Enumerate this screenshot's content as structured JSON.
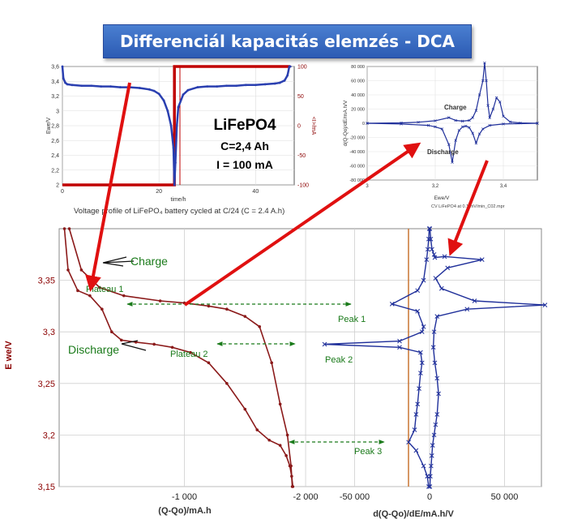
{
  "title": "Differenciál kapacitás elemzés - DCA",
  "info": {
    "material": "LiFePO4",
    "capacity": "C=2,4 Ah",
    "current": "I = 100 mA"
  },
  "colors": {
    "banner": "#2f5fb8",
    "voltage_curve": "#2a3fb0",
    "current_line": "#c00000",
    "main_curve": "#8b1a1a",
    "dqdv_curve": "#1f2f9a",
    "arrow": "#e01010",
    "annotation": "#1a7a1a"
  },
  "chart_data": [
    {
      "id": "voltage-profile",
      "type": "line",
      "caption": "Voltage profile of LiFePO₄ battery cycled at C/24 (C = 2.4 A.h)",
      "xlabel": "time/h",
      "ylabel": "Ewe/V",
      "y2label": "<I>/mA",
      "xlim": [
        0,
        48
      ],
      "ylim": [
        2.0,
        3.6
      ],
      "y2lim": [
        -100,
        100
      ],
      "x_ticks": [
        "0",
        "20",
        "40"
      ],
      "y_ticks": [
        "2",
        "2,2",
        "2,4",
        "2,6",
        "2,8",
        "3",
        "3,2",
        "3,4",
        "3,6"
      ],
      "y2_ticks": [
        "-100",
        "-50",
        "0",
        "50",
        "100"
      ],
      "series": [
        {
          "x": [
            0,
            0.2,
            0.6,
            1,
            2,
            4,
            6,
            8,
            10,
            12,
            14,
            16,
            18,
            19,
            20,
            21,
            21.8,
            22.5,
            23,
            23.2,
            23.4,
            23.7,
            24,
            25,
            26,
            28,
            30,
            32,
            34,
            36,
            38,
            40,
            42,
            44,
            45,
            46,
            46.6,
            47,
            47.2
          ],
          "y": [
            3.6,
            3.44,
            3.38,
            3.36,
            3.35,
            3.34,
            3.34,
            3.33,
            3.33,
            3.32,
            3.32,
            3.31,
            3.29,
            3.27,
            3.23,
            3.14,
            3.0,
            2.8,
            2.5,
            2.0,
            2.3,
            2.8,
            3.05,
            3.22,
            3.28,
            3.32,
            3.33,
            3.33,
            3.34,
            3.34,
            3.35,
            3.35,
            3.36,
            3.37,
            3.38,
            3.41,
            3.48,
            3.6,
            3.6
          ]
        },
        {
          "x": [
            0,
            23.2,
            23.2,
            47.2
          ],
          "y2": [
            -100,
            -100,
            100,
            100
          ]
        }
      ]
    },
    {
      "id": "cv-inset",
      "type": "line",
      "caption": "CV LiFePO4 at 0.1 mV/min_C02.mpr",
      "xlabel": "Ewe/V",
      "ylabel": "d(Q-Qo)/dE/mA.h/V",
      "xlim": [
        3.0,
        3.5
      ],
      "ylim": [
        -80000,
        80000
      ],
      "x_ticks": [
        "3",
        "3,2",
        "3,4"
      ],
      "y_ticks": [
        "-80 000",
        "-60 000",
        "-40 000",
        "-20 000",
        "0",
        "20 000",
        "40 000",
        "60 000",
        "80 000"
      ],
      "annotations": [
        "Charge",
        "Discharge"
      ],
      "series": [
        {
          "name": "Charge",
          "x": [
            3.0,
            3.1,
            3.15,
            3.2,
            3.24,
            3.26,
            3.28,
            3.3,
            3.31,
            3.32,
            3.33,
            3.34,
            3.345,
            3.35,
            3.355,
            3.36,
            3.37,
            3.38,
            3.39,
            3.4,
            3.42,
            3.45,
            3.5
          ],
          "y": [
            0,
            600,
            1500,
            3500,
            8000,
            4000,
            3000,
            4000,
            8000,
            18000,
            40000,
            60000,
            85000,
            60000,
            25000,
            8000,
            20000,
            36000,
            30000,
            10000,
            2000,
            500,
            0
          ]
        },
        {
          "name": "Discharge",
          "x": [
            3.5,
            3.4,
            3.36,
            3.34,
            3.33,
            3.32,
            3.31,
            3.3,
            3.29,
            3.28,
            3.27,
            3.26,
            3.25,
            3.24,
            3.22,
            3.2,
            3.18,
            3.1,
            3.0
          ],
          "y": [
            0,
            -1000,
            -3000,
            -8000,
            -15000,
            -28000,
            -14000,
            -6000,
            -4000,
            -5000,
            -10000,
            -24000,
            -55000,
            -30000,
            -8000,
            -5000,
            -3000,
            -1000,
            0
          ]
        }
      ]
    },
    {
      "id": "main-left",
      "type": "line",
      "xlabel": "(Q-Qo)/mA.h",
      "ylabel": "E we/V",
      "xlim": [
        -2100,
        0
      ],
      "ylim": [
        3.15,
        3.4
      ],
      "x_ticks": [
        "-1 000",
        "-2 000"
      ],
      "y_ticks": [
        "3,15",
        "3,2",
        "3,25",
        "3,3",
        "3,35"
      ],
      "annotations": [
        "Charge",
        "Discharge",
        "Plateau 1",
        "Plateau 2"
      ],
      "series": [
        {
          "name": "Charge",
          "x": [
            -50,
            -150,
            -300,
            -500,
            -800,
            -1000,
            -1200,
            -1350,
            -1500,
            -1620,
            -1720,
            -1790,
            -1850,
            -1880,
            -1890
          ],
          "y": [
            3.4,
            3.36,
            3.343,
            3.335,
            3.33,
            3.328,
            3.325,
            3.322,
            3.315,
            3.305,
            3.27,
            3.23,
            3.2,
            3.17,
            3.15
          ]
        },
        {
          "name": "Discharge",
          "x": [
            -10,
            -40,
            -120,
            -220,
            -320,
            -400,
            -480,
            -600,
            -750,
            -900,
            -1050,
            -1200,
            -1350,
            -1500,
            -1600,
            -1700,
            -1790,
            -1840,
            -1870,
            -1885,
            -1895
          ],
          "y": [
            3.4,
            3.36,
            3.34,
            3.335,
            3.322,
            3.3,
            3.292,
            3.29,
            3.288,
            3.285,
            3.28,
            3.27,
            3.25,
            3.225,
            3.205,
            3.195,
            3.19,
            3.18,
            3.17,
            3.16,
            3.15
          ]
        }
      ]
    },
    {
      "id": "main-right",
      "type": "line",
      "xlabel": "d(Q-Qo)/dE/mA.h/V",
      "xlim": [
        -80000,
        80000
      ],
      "ylim": [
        3.15,
        3.4
      ],
      "x_ticks": [
        "-50 000",
        "0",
        "50 000"
      ],
      "annotations": [
        "Peak 1",
        "Peak 2",
        "Peak 3"
      ],
      "series": [
        {
          "name": "Charge",
          "x": [
            200,
            800,
            1600,
            3000,
            3500,
            10000,
            35000,
            12000,
            4000,
            8000,
            30000,
            77000,
            25000,
            5000,
            3000,
            2500,
            3500,
            5000,
            6000,
            5000,
            4000,
            3000,
            2000,
            1500,
            1000,
            500,
            200
          ],
          "y": [
            3.4,
            3.39,
            3.38,
            3.375,
            3.372,
            3.373,
            3.37,
            3.362,
            3.352,
            3.342,
            3.33,
            3.326,
            3.322,
            3.315,
            3.3,
            3.285,
            3.27,
            3.255,
            3.24,
            3.22,
            3.21,
            3.2,
            3.19,
            3.18,
            3.17,
            3.16,
            3.15
          ]
        },
        {
          "name": "Discharge",
          "x": [
            -200,
            -600,
            -1200,
            -2000,
            -4000,
            -8000,
            -25000,
            -8000,
            -4000,
            -5000,
            -20000,
            -70000,
            -20000,
            -6000,
            -5000,
            -6000,
            -7000,
            -8000,
            -9000,
            -10000,
            -14000,
            -9000,
            -4000,
            -1500,
            -600
          ],
          "y": [
            3.4,
            3.39,
            3.38,
            3.37,
            3.35,
            3.34,
            3.327,
            3.32,
            3.305,
            3.3,
            3.291,
            3.288,
            3.285,
            3.28,
            3.27,
            3.26,
            3.245,
            3.23,
            3.22,
            3.205,
            3.193,
            3.185,
            3.17,
            3.16,
            3.15
          ]
        }
      ]
    }
  ]
}
